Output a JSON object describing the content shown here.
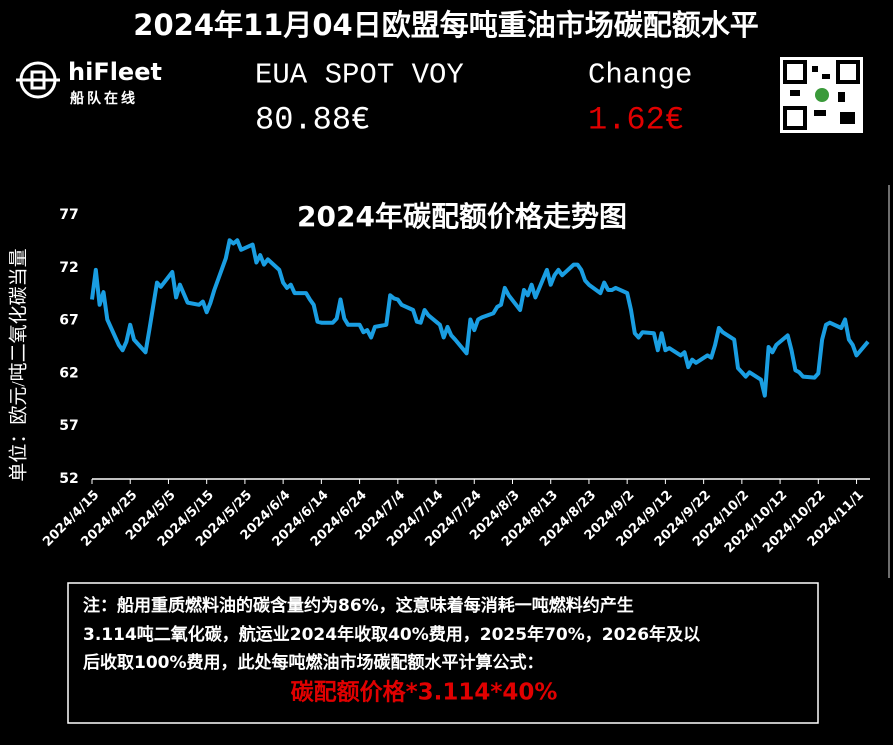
{
  "header": {
    "title": "2024年11月04日欧盟每吨重油市场碳配额水平",
    "logo": "hiFleet",
    "logo_sub": "船队在线",
    "spot_label": "EUA SPOT VOY",
    "spot_value": "80.88€",
    "change_label": "Change",
    "change_value": "1.62€"
  },
  "chart_data": {
    "type": "line",
    "title": "2024年碳配额价格走势图",
    "y_label": "单位：欧元/吨二氧化碳当量",
    "x": [
      "2024/4/15",
      "2024/4/16",
      "2024/4/17",
      "2024/4/18",
      "2024/4/19",
      "2024/4/22",
      "2024/4/23",
      "2024/4/24",
      "2024/4/25",
      "2024/4/26",
      "2024/4/29",
      "2024/4/30",
      "2024/5/2",
      "2024/5/3",
      "2024/5/6",
      "2024/5/7",
      "2024/5/8",
      "2024/5/10",
      "2024/5/13",
      "2024/5/14",
      "2024/5/15",
      "2024/5/16",
      "2024/5/17",
      "2024/5/20",
      "2024/5/21",
      "2024/5/22",
      "2024/5/23",
      "2024/5/24",
      "2024/5/27",
      "2024/5/28",
      "2024/5/29",
      "2024/5/30",
      "2024/5/31",
      "2024/6/3",
      "2024/6/4",
      "2024/6/5",
      "2024/6/6",
      "2024/6/7",
      "2024/6/10",
      "2024/6/11",
      "2024/6/12",
      "2024/6/13",
      "2024/6/14",
      "2024/6/17",
      "2024/6/18",
      "2024/6/19",
      "2024/6/20",
      "2024/6/21",
      "2024/6/24",
      "2024/6/25",
      "2024/6/26",
      "2024/6/27",
      "2024/6/28",
      "2024/7/1",
      "2024/7/2",
      "2024/7/3",
      "2024/7/4",
      "2024/7/5",
      "2024/7/8",
      "2024/7/9",
      "2024/7/10",
      "2024/7/11",
      "2024/7/12",
      "2024/7/15",
      "2024/7/16",
      "2024/7/17",
      "2024/7/18",
      "2024/7/19",
      "2024/7/22",
      "2024/7/23",
      "2024/7/24",
      "2024/7/25",
      "2024/7/26",
      "2024/7/29",
      "2024/7/30",
      "2024/7/31",
      "2024/8/1",
      "2024/8/2",
      "2024/8/5",
      "2024/8/6",
      "2024/8/7",
      "2024/8/8",
      "2024/8/9",
      "2024/8/12",
      "2024/8/13",
      "2024/8/14",
      "2024/8/15",
      "2024/8/16",
      "2024/8/19",
      "2024/8/20",
      "2024/8/21",
      "2024/8/22",
      "2024/8/23",
      "2024/8/26",
      "2024/8/27",
      "2024/8/28",
      "2024/8/29",
      "2024/8/30",
      "2024/9/2",
      "2024/9/3",
      "2024/9/4",
      "2024/9/5",
      "2024/9/6",
      "2024/9/9",
      "2024/9/10",
      "2024/9/11",
      "2024/9/12",
      "2024/9/13",
      "2024/9/16",
      "2024/9/17",
      "2024/9/18",
      "2024/9/19",
      "2024/9/20",
      "2024/9/23",
      "2024/9/24",
      "2024/9/25",
      "2024/9/26",
      "2024/9/27",
      "2024/9/30",
      "2024/10/1",
      "2024/10/2",
      "2024/10/3",
      "2024/10/4",
      "2024/10/7",
      "2024/10/8",
      "2024/10/9",
      "2024/10/10",
      "2024/10/11",
      "2024/10/14",
      "2024/10/15",
      "2024/10/16",
      "2024/10/17",
      "2024/10/18",
      "2024/10/21",
      "2024/10/22",
      "2024/10/23",
      "2024/10/24",
      "2024/10/25",
      "2024/10/28",
      "2024/10/29",
      "2024/10/30",
      "2024/10/31",
      "2024/11/1",
      "2024/11/4"
    ],
    "series": [
      {
        "name": "EUA",
        "color": "#1a9ee2",
        "values": [
          69.0,
          71.8,
          68.5,
          69.7,
          67.1,
          64.7,
          64.2,
          65.0,
          66.6,
          65.2,
          64.0,
          66.1,
          70.6,
          70.2,
          71.6,
          69.2,
          70.4,
          68.7,
          68.5,
          68.8,
          67.8,
          68.7,
          69.9,
          72.9,
          74.6,
          74.3,
          74.6,
          73.7,
          74.2,
          72.5,
          73.2,
          72.3,
          72.8,
          71.8,
          70.6,
          70.1,
          70.4,
          69.6,
          69.6,
          69.0,
          68.5,
          66.9,
          66.8,
          66.8,
          67.2,
          69.0,
          67.2,
          66.6,
          66.6,
          65.9,
          66.1,
          65.4,
          66.4,
          66.6,
          69.4,
          69.1,
          69.0,
          68.5,
          68.0,
          66.9,
          66.8,
          68.0,
          67.5,
          66.6,
          65.4,
          66.4,
          65.6,
          65.2,
          63.9,
          67.1,
          66.1,
          67.1,
          67.3,
          67.7,
          68.3,
          68.5,
          70.1,
          69.4,
          68.0,
          69.9,
          69.4,
          70.4,
          69.2,
          71.8,
          70.4,
          71.3,
          71.8,
          71.3,
          72.3,
          72.3,
          71.8,
          70.8,
          70.4,
          69.6,
          70.6,
          69.9,
          69.9,
          70.1,
          69.6,
          68.0,
          65.8,
          65.4,
          65.9,
          65.8,
          64.2,
          65.8,
          64.2,
          64.4,
          63.7,
          64.0,
          62.6,
          63.3,
          63.0,
          63.7,
          63.5,
          64.7,
          66.3,
          65.9,
          65.2,
          62.5,
          62.1,
          61.7,
          62.1,
          61.4,
          59.9,
          64.5,
          64.0,
          64.7,
          65.6,
          64.2,
          62.3,
          62.1,
          61.7,
          61.6,
          62.0,
          65.2,
          66.6,
          66.8,
          66.3,
          67.1,
          65.2,
          64.7,
          63.7,
          65.0
        ]
      }
    ],
    "xticks": [
      "2024/4/15",
      "2024/4/25",
      "2024/5/5",
      "2024/5/15",
      "2024/5/25",
      "2024/6/4",
      "2024/6/14",
      "2024/6/24",
      "2024/7/4",
      "2024/7/14",
      "2024/7/24",
      "2024/8/3",
      "2024/8/13",
      "2024/8/23",
      "2024/9/2",
      "2024/9/12",
      "2024/9/22",
      "2024/10/2",
      "2024/10/12",
      "2024/10/22",
      "2024/11/1"
    ],
    "ylim": [
      52,
      77
    ],
    "yticks": [
      52,
      57,
      62,
      67,
      72,
      77
    ],
    "grid": false
  },
  "note": {
    "lines": [
      "注：船用重质燃料油的碳含量约为86%，这意味着每消耗一吨燃料约产生",
      "3.114吨二氧化碳，航运业2024年收取40%费用，2025年70%，2026年及以",
      "后收取100%费用，此处每吨燃油市场碳配额水平计算公式："
    ],
    "formula": "碳配额价格*3.114*40%"
  }
}
